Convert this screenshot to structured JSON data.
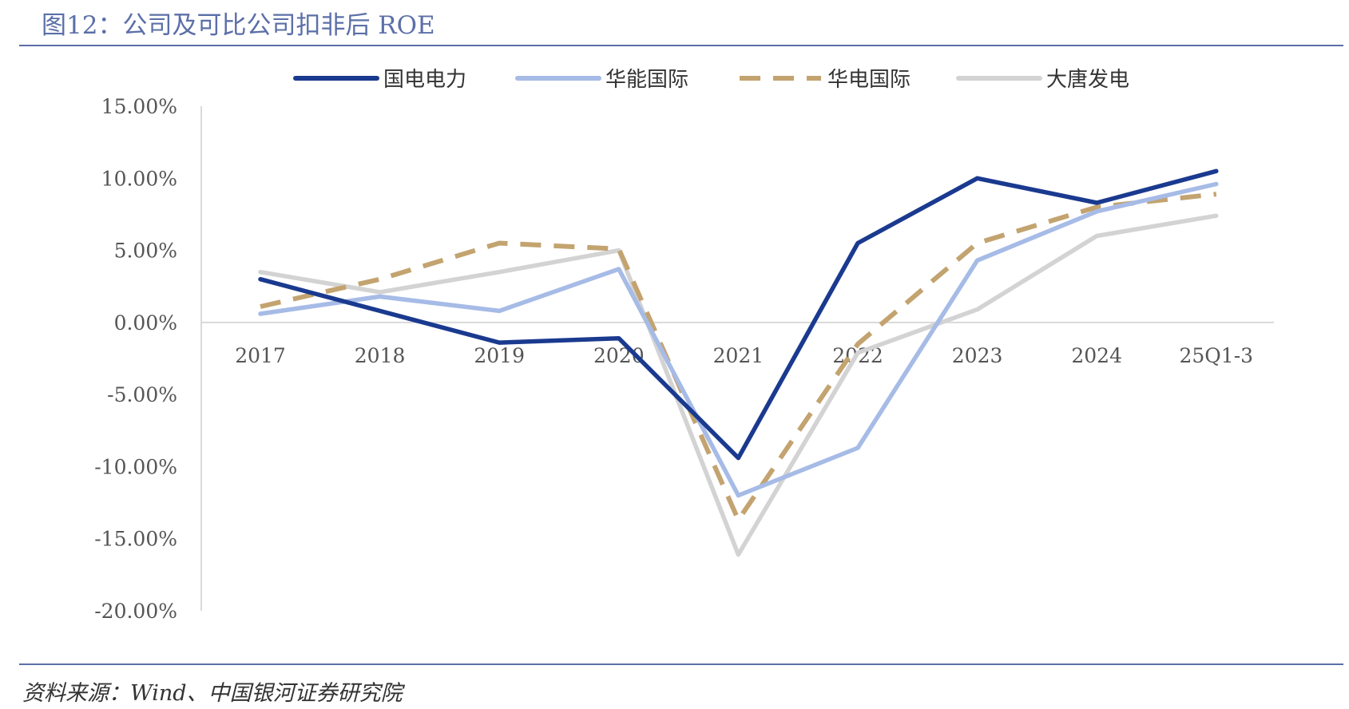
{
  "figure": {
    "title": "图12：公司及可比公司扣非后 ROE",
    "source": "资料来源：Wind、中国银河证券研究院"
  },
  "chart_data": {
    "type": "line",
    "categories": [
      "2017",
      "2018",
      "2019",
      "2020",
      "2021",
      "2022",
      "2023",
      "2024",
      "25Q1-3"
    ],
    "y_ticks": [
      "15.00%",
      "10.00%",
      "5.00%",
      "0.00%",
      "-5.00%",
      "-10.00%",
      "-15.00%",
      "-20.00%"
    ],
    "ylim": [
      -20,
      15
    ],
    "unit": "%",
    "grid": false,
    "legend_position": "top",
    "series": [
      {
        "name": "国电电力",
        "color": "#1a3a8f",
        "dash": false,
        "values": [
          3.0,
          0.8,
          -1.4,
          -1.1,
          -9.4,
          5.5,
          10.0,
          8.3,
          10.5
        ]
      },
      {
        "name": "华能国际",
        "color": "#a6bbe6",
        "dash": false,
        "values": [
          0.6,
          1.8,
          0.8,
          3.7,
          -12.0,
          -8.7,
          4.3,
          7.7,
          9.6
        ]
      },
      {
        "name": "华电国际",
        "color": "#c3a36f",
        "dash": true,
        "values": [
          1.1,
          3.0,
          5.5,
          5.1,
          -13.7,
          -1.5,
          5.5,
          8.0,
          8.9
        ]
      },
      {
        "name": "大唐发电",
        "color": "#d3d3d3",
        "dash": false,
        "values": [
          3.5,
          2.1,
          3.5,
          5.0,
          -16.1,
          -2.1,
          0.9,
          6.0,
          7.4
        ]
      }
    ]
  }
}
